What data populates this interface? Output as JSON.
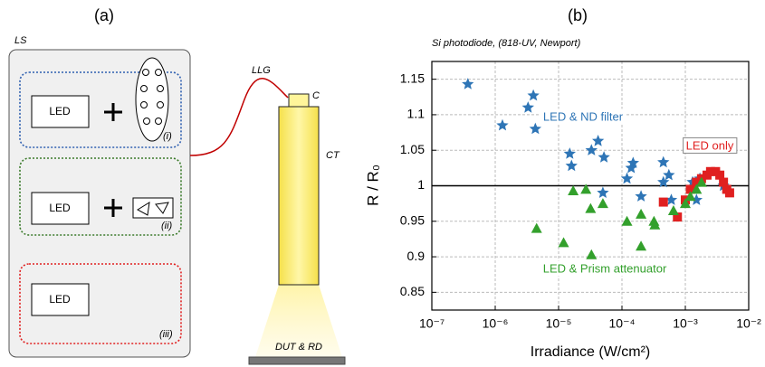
{
  "diagram": {
    "panel_label": "(a)",
    "source_label": "LS",
    "led_labels": [
      "LED",
      "LED",
      "LED"
    ],
    "option_labels": [
      "(i)",
      "(ii)",
      "(iii)"
    ],
    "guide_label": "LLG",
    "collimator_label": "C",
    "tube_label": "CT",
    "target_label": "DUT & RD"
  },
  "chart_data": {
    "type": "scatter",
    "panel_label": "(b)",
    "title": "Si photodiode, (818-UV, Newport)",
    "x_label": "Irradiance (W/cm²)",
    "y_label": "R / R₀",
    "x_scale": "log",
    "xlim": [
      1e-07,
      0.01
    ],
    "xticks": [
      {
        "value": 1e-07,
        "label": "10⁻⁷"
      },
      {
        "value": 1e-06,
        "label": "10⁻⁶"
      },
      {
        "value": 1e-05,
        "label": "10⁻⁵"
      },
      {
        "value": 0.0001,
        "label": "10⁻⁴"
      },
      {
        "value": 0.001,
        "label": "10⁻³"
      },
      {
        "value": 0.01,
        "label": "10⁻²"
      }
    ],
    "ylim": [
      0.825,
      1.175
    ],
    "yticks": [
      0.85,
      0.9,
      0.95,
      1,
      1.05,
      1.1,
      1.15
    ],
    "grid": true,
    "reference_line": 1,
    "series": [
      {
        "name": "LED & ND filter",
        "color": "#2e75b6",
        "marker": "star",
        "x": [
          3.7e-07,
          1.3e-06,
          3.3e-06,
          4e-06,
          4.3e-06,
          1.5e-05,
          1.6e-05,
          3.3e-05,
          4.2e-05,
          5.2e-05,
          5e-05,
          0.00012,
          0.00014,
          0.00015,
          0.0002,
          0.00045,
          0.00045,
          0.00055,
          0.0006,
          0.0013,
          0.0015,
          0.0017,
          0.004
        ],
        "y": [
          1.143,
          1.085,
          1.11,
          1.127,
          1.08,
          1.045,
          1.028,
          1.05,
          1.063,
          1.04,
          0.99,
          1.01,
          1.025,
          1.032,
          0.985,
          1.033,
          1.005,
          1.015,
          0.98,
          1.005,
          0.98,
          1.01,
          1.0
        ]
      },
      {
        "name": "LED only",
        "color": "#e02020",
        "marker": "square",
        "x": [
          0.00045,
          0.00075,
          0.001,
          0.0012,
          0.0015,
          0.0018,
          0.0022,
          0.0025,
          0.003,
          0.0035,
          0.004,
          0.0045,
          0.005
        ],
        "y": [
          0.977,
          0.956,
          0.98,
          0.995,
          1.005,
          1.01,
          1.015,
          1.02,
          1.02,
          1.015,
          1.005,
          0.995,
          0.99
        ]
      },
      {
        "name": "LED & Prism attenuator",
        "color": "#33a02c",
        "marker": "triangle",
        "x": [
          4.5e-06,
          1.2e-05,
          1.7e-05,
          2.7e-05,
          3.2e-05,
          3.3e-05,
          5e-05,
          0.00012,
          0.0002,
          0.0002,
          0.00032,
          0.00033,
          0.00065,
          0.001,
          0.0012,
          0.0015,
          0.0018
        ],
        "y": [
          0.94,
          0.92,
          0.993,
          0.995,
          0.968,
          0.903,
          0.975,
          0.95,
          0.96,
          0.915,
          0.95,
          0.945,
          0.965,
          0.975,
          0.985,
          0.995,
          1.005
        ]
      }
    ]
  }
}
